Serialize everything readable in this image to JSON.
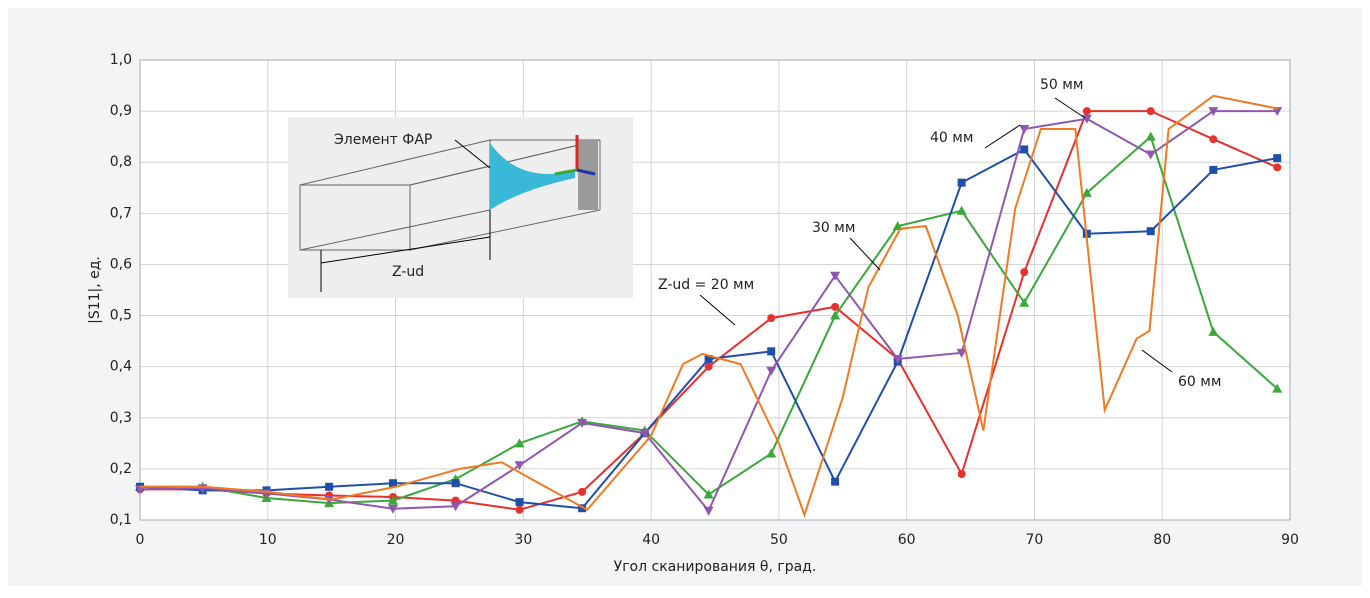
{
  "chart_data": {
    "type": "line",
    "x_label": "Угол сканирования θ, град.",
    "y_label": "|S11|, ед.",
    "xlim": [
      0,
      90
    ],
    "xticks": [
      0,
      10,
      20,
      30,
      40,
      50,
      60,
      70,
      80,
      90
    ],
    "ylim": [
      0.1,
      1.0
    ],
    "yticks": [
      {
        "value": 0.1,
        "label": "0,1"
      },
      {
        "value": 0.2,
        "label": "0,2"
      },
      {
        "value": 0.3,
        "label": "0,3"
      },
      {
        "value": 0.4,
        "label": "0,4"
      },
      {
        "value": 0.5,
        "label": "0,5"
      },
      {
        "value": 0.6,
        "label": "0,6"
      },
      {
        "value": 0.7,
        "label": "0,7"
      },
      {
        "value": 0.8,
        "label": "0,8"
      },
      {
        "value": 0.9,
        "label": "0,9"
      },
      {
        "value": 1.0,
        "label": "1,0"
      }
    ],
    "grid": true,
    "series": [
      {
        "name": "Z-ud = 20 мм",
        "color": "#e8302c",
        "marker": "circle",
        "x": [
          0,
          4.9,
          9.9,
          14.8,
          19.8,
          24.7,
          29.7,
          34.6,
          39.5,
          44.5,
          49.4,
          54.4,
          59.3,
          64.3,
          69.2,
          74.1,
          79.1,
          84,
          89
        ],
        "values": [
          0.16,
          0.16,
          0.152,
          0.148,
          0.145,
          0.138,
          0.12,
          0.155,
          0.27,
          0.4,
          0.495,
          0.517,
          0.415,
          0.19,
          0.585,
          0.9,
          0.9,
          0.845,
          0.79
        ]
      },
      {
        "name": "30 мм",
        "color": "#3aa83a",
        "marker": "triangle-up",
        "x": [
          0,
          4.9,
          9.9,
          14.8,
          19.8,
          24.7,
          29.7,
          34.6,
          39.5,
          44.5,
          49.4,
          54.4,
          59.3,
          64.3,
          69.2,
          74.1,
          79.1,
          84,
          89
        ],
        "values": [
          0.165,
          0.165,
          0.143,
          0.133,
          0.138,
          0.18,
          0.25,
          0.293,
          0.275,
          0.15,
          0.23,
          0.5,
          0.675,
          0.705,
          0.525,
          0.74,
          0.85,
          0.468,
          0.357
        ]
      },
      {
        "name": "40 мм",
        "color": "#1f4fa8",
        "marker": "square",
        "x": [
          0,
          4.9,
          9.9,
          14.8,
          19.8,
          24.7,
          29.7,
          34.6,
          39.5,
          44.5,
          49.4,
          54.4,
          59.3,
          64.3,
          69.2,
          74.1,
          79.1,
          84,
          89
        ],
        "values": [
          0.165,
          0.158,
          0.158,
          0.165,
          0.172,
          0.172,
          0.135,
          0.123,
          0.27,
          0.415,
          0.43,
          0.175,
          0.41,
          0.76,
          0.825,
          0.66,
          0.665,
          0.785,
          0.808
        ]
      },
      {
        "name": "50 мм",
        "color": "#9157b0",
        "marker": "triangle-down",
        "x": [
          0,
          4.9,
          9.9,
          14.8,
          19.8,
          24.7,
          29.7,
          34.6,
          39.5,
          44.5,
          49.4,
          54.4,
          59.3,
          64.3,
          69.2,
          74.1,
          79.1,
          84,
          89
        ],
        "values": [
          0.16,
          0.162,
          0.152,
          0.14,
          0.122,
          0.127,
          0.207,
          0.29,
          0.27,
          0.118,
          0.392,
          0.578,
          0.415,
          0.427,
          0.865,
          0.885,
          0.815,
          0.9,
          0.9
        ]
      },
      {
        "name": "60 мм",
        "color": "#f07a22",
        "marker": "none",
        "x": [
          0,
          5,
          10,
          15,
          20,
          25,
          28.3,
          31,
          35,
          40,
          42.5,
          44,
          47,
          50,
          52,
          55,
          57,
          59.5,
          61.5,
          64,
          66,
          68.5,
          70.5,
          73.2,
          75.5,
          78,
          79,
          80.5,
          84,
          89
        ],
        "values": [
          0.165,
          0.165,
          0.155,
          0.14,
          0.165,
          0.2,
          0.213,
          0.175,
          0.12,
          0.265,
          0.405,
          0.425,
          0.405,
          0.25,
          0.11,
          0.34,
          0.555,
          0.67,
          0.675,
          0.5,
          0.275,
          0.71,
          0.865,
          0.865,
          0.315,
          0.455,
          0.47,
          0.865,
          0.93,
          0.905
        ]
      }
    ],
    "inset": {
      "labels": [
        "Элемент ФАР",
        "Z-ud"
      ]
    }
  }
}
